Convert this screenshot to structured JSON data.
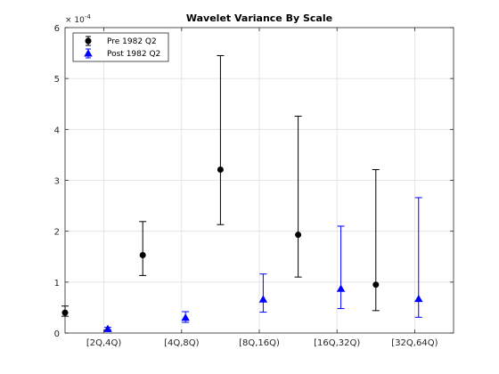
{
  "chart_data": {
    "type": "scatter",
    "title": "Wavelet Variance By Scale",
    "xlabel": "",
    "ylabel": "",
    "y_multiplier_label": "× 10",
    "y_multiplier_exponent": "-4",
    "ylim": [
      0,
      6
    ],
    "y_ticks": [
      "0",
      "1",
      "2",
      "3",
      "4",
      "5",
      "6"
    ],
    "x_tick_labels": [
      "[2Q,4Q)",
      "[4Q,8Q)",
      "[8Q,16Q)",
      "[16Q,32Q)",
      "[32Q,64Q)"
    ],
    "grid": true,
    "legend_position": "top-left",
    "series": [
      {
        "name": "Pre 1982 Q2",
        "color": "#000000",
        "marker": "circle",
        "values": [
          0.4,
          1.53,
          3.21,
          1.93,
          0.95
        ],
        "lower": [
          0.33,
          1.13,
          2.13,
          1.1,
          0.44
        ],
        "upper": [
          0.53,
          2.19,
          5.45,
          4.26,
          3.21
        ]
      },
      {
        "name": "Post 1982 Q2",
        "color": "#0000ff",
        "marker": "triangle",
        "values": [
          0.08,
          0.3,
          0.66,
          0.87,
          0.67
        ],
        "lower": [
          0.06,
          0.21,
          0.41,
          0.48,
          0.31
        ],
        "upper": [
          0.11,
          0.42,
          1.16,
          2.1,
          2.66
        ]
      }
    ]
  }
}
